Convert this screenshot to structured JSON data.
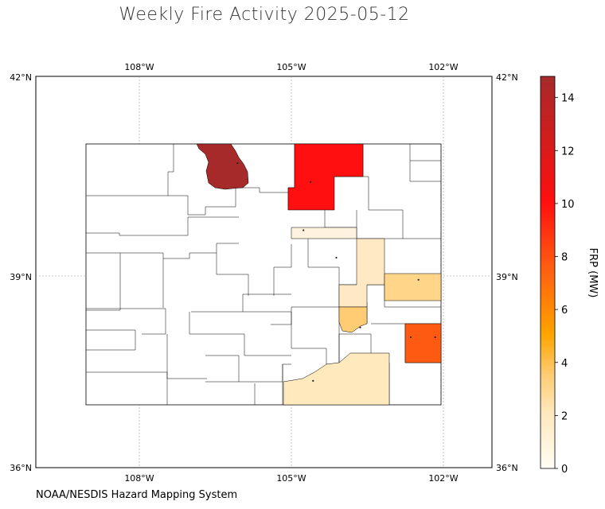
{
  "title": "Weekly Fire Activity 2025-05-12",
  "credit": "NOAA/NESDIS Hazard Mapping System",
  "map": {
    "extent": {
      "lon": [
        -110.0,
        -101.0
      ],
      "lat": [
        36.0,
        42.0
      ]
    },
    "lon_ticks": [
      {
        "value": -108,
        "label": "108°W"
      },
      {
        "value": -105,
        "label": "105°W"
      },
      {
        "value": -102,
        "label": "102°W"
      }
    ],
    "lat_ticks": [
      {
        "value": 42,
        "label": "42°N"
      },
      {
        "value": 39,
        "label": "39°N"
      },
      {
        "value": 36,
        "label": "36°N"
      }
    ],
    "gridlines": true
  },
  "colorbar": {
    "label": "FRP (MW)",
    "min": 0,
    "max": 14.8,
    "ticks": [
      {
        "value": 0,
        "label": "0"
      },
      {
        "value": 2,
        "label": "2"
      },
      {
        "value": 4,
        "label": "4"
      },
      {
        "value": 6,
        "label": "6"
      },
      {
        "value": 8,
        "label": "8"
      },
      {
        "value": 10,
        "label": "10"
      },
      {
        "value": 12,
        "label": "12"
      },
      {
        "value": 14,
        "label": "14"
      }
    ],
    "colors": [
      "#fffdf5",
      "#ffe9bd",
      "#ffcc73",
      "#ffa500",
      "#ff5a11",
      "#ff0f0f",
      "#a62a2a"
    ]
  },
  "chart_data": {
    "type": "choropleth",
    "region": "Colorado counties",
    "value_label": "FRP (MW)",
    "filled_counties": [
      {
        "id": "north-central",
        "frp": 14.7
      },
      {
        "id": "northeast-front-range",
        "frp": 10.3
      },
      {
        "id": "denver-metro-strip",
        "frp": 0.5
      },
      {
        "id": "east-central",
        "frp": 1.0
      },
      {
        "id": "eastern-plains-1",
        "frp": 2.8
      },
      {
        "id": "arkansas-valley",
        "frp": 2.9
      },
      {
        "id": "southeast",
        "frp": 7.6
      },
      {
        "id": "southern",
        "frp": 1.6
      }
    ],
    "fire_points": [
      {
        "lon": -106.02,
        "lat": 40.67
      },
      {
        "lon": -104.58,
        "lat": 40.38
      },
      {
        "lon": -104.72,
        "lat": 39.64
      },
      {
        "lon": -104.07,
        "lat": 39.22
      },
      {
        "lon": -102.45,
        "lat": 38.88
      },
      {
        "lon": -103.6,
        "lat": 38.15
      },
      {
        "lon": -102.6,
        "lat": 38.0
      },
      {
        "lon": -102.12,
        "lat": 38.0
      },
      {
        "lon": -104.53,
        "lat": 37.33
      }
    ]
  }
}
